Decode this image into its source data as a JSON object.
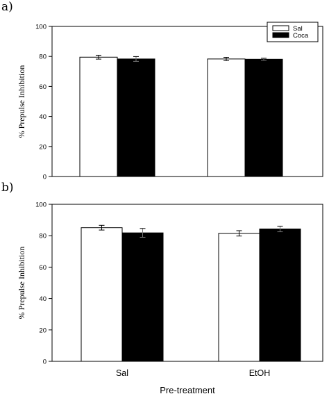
{
  "chart_data": [
    {
      "type": "bar",
      "panel": "a)",
      "categories": [
        "Sal",
        "EtOH"
      ],
      "series": [
        {
          "name": "Sal",
          "values": [
            79.5,
            78.3
          ],
          "errors": [
            1.3,
            1.1
          ],
          "color": "#ffffff"
        },
        {
          "name": "Coca",
          "values": [
            78.3,
            78.1
          ],
          "errors": [
            1.6,
            0.7
          ],
          "color": "#000000"
        }
      ],
      "ylabel": "% Prepulse Inhibition",
      "ylim": [
        0,
        100
      ],
      "yticks": [
        "0",
        "20",
        "40",
        "60",
        "80",
        "100"
      ],
      "show_category_labels": false,
      "legend": "top-right"
    },
    {
      "type": "bar",
      "panel": "b)",
      "categories": [
        "Sal",
        "EtOH"
      ],
      "series": [
        {
          "name": "Sal",
          "values": [
            85.1,
            81.5
          ],
          "errors": [
            1.5,
            1.7
          ],
          "color": "#ffffff"
        },
        {
          "name": "Coca",
          "values": [
            81.8,
            84.3
          ],
          "errors": [
            2.8,
            1.8
          ],
          "color": "#000000"
        }
      ],
      "ylabel": "% Prepulse Inhibition",
      "xlabel": "Pre-treatment",
      "ylim": [
        0,
        100
      ],
      "yticks": [
        "0",
        "20",
        "40",
        "60",
        "80",
        "100"
      ],
      "show_category_labels": true
    }
  ]
}
